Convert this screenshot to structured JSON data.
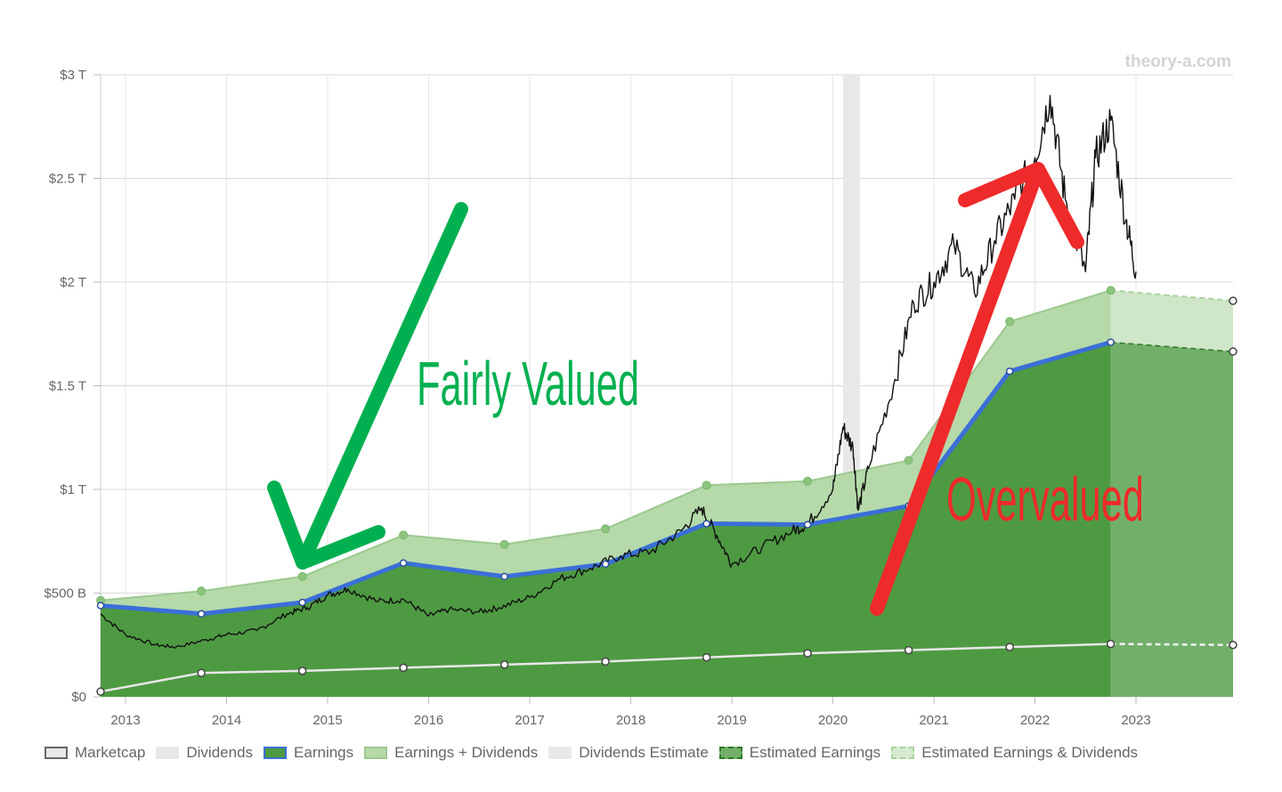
{
  "watermark": "theory-a.com",
  "annotations": {
    "fair": "Fairly Valued",
    "over": "Overvalued",
    "fair_color": "#00b050",
    "over_color": "#ee2a2a"
  },
  "legend": [
    {
      "key": "marketcap",
      "label": "Marketcap",
      "fill": "#e8e8e8",
      "border": "#666666",
      "dashed": false
    },
    {
      "key": "dividends",
      "label": "Dividends",
      "fill": "#e8e8e8",
      "border": "#e8e8e8",
      "dashed": false
    },
    {
      "key": "earnings",
      "label": "Earnings",
      "fill": "#4e9a42",
      "border": "#3b6fd8",
      "dashed": false
    },
    {
      "key": "earnings-dividends",
      "label": "Earnings + Dividends",
      "fill": "#b5d9a9",
      "border": "#9cc98f",
      "dashed": false
    },
    {
      "key": "dividends-estimate",
      "label": "Dividends Estimate",
      "fill": "#e8e8e8",
      "border": "#e8e8e8",
      "dashed": false
    },
    {
      "key": "estimated-earnings",
      "label": "Estimated Earnings",
      "fill": "#72b06a",
      "border": "#2f7a2a",
      "dashed": true
    },
    {
      "key": "estimated-earnings-dividends",
      "label": "Estimated Earnings & Dividends",
      "fill": "#d6ead0",
      "border": "#a9d39e",
      "dashed": true
    }
  ],
  "chart_data": {
    "type": "area",
    "x_ticks": [
      "2013",
      "2014",
      "2015",
      "2016",
      "2017",
      "2018",
      "2019",
      "2020",
      "2021",
      "2022",
      "2023"
    ],
    "y_ticks": [
      {
        "value": 0,
        "label": "$0"
      },
      {
        "value": 500,
        "label": "$500 B"
      },
      {
        "value": 1000,
        "label": "$1 T"
      },
      {
        "value": 1500,
        "label": "$1.5 T"
      },
      {
        "value": 2000,
        "label": "$2 T"
      },
      {
        "value": 2500,
        "label": "$2.5 T"
      },
      {
        "value": 3000,
        "label": "$3 T"
      }
    ],
    "ylim": [
      0,
      3000
    ],
    "xlim": [
      2012.75,
      2024.0
    ],
    "y_unit": "billions USD",
    "grid": true,
    "legend_position": "bottom",
    "series": [
      {
        "name": "Earnings + Dividends",
        "color": "#a8d49b",
        "x": [
          2012.75,
          2013.75,
          2014.75,
          2015.75,
          2016.75,
          2017.75,
          2018.75,
          2019.75,
          2020.75,
          2021.75,
          2022.75
        ],
        "values": [
          465,
          510,
          580,
          780,
          735,
          810,
          1020,
          1040,
          1140,
          1810,
          1960
        ]
      },
      {
        "name": "Earnings",
        "color": "#3b6fd8",
        "x": [
          2012.75,
          2013.75,
          2014.75,
          2015.75,
          2016.75,
          2017.75,
          2018.75,
          2019.75,
          2020.75,
          2021.75,
          2022.75
        ],
        "values": [
          440,
          400,
          455,
          645,
          580,
          640,
          835,
          830,
          920,
          1570,
          1710
        ]
      },
      {
        "name": "Dividends",
        "color": "#e8e8e8",
        "x": [
          2012.75,
          2013.75,
          2014.75,
          2015.75,
          2016.75,
          2017.75,
          2018.75,
          2019.75,
          2020.75,
          2021.75,
          2022.75
        ],
        "values": [
          25,
          115,
          125,
          140,
          155,
          170,
          190,
          210,
          225,
          240,
          255
        ]
      },
      {
        "name": "Estimated Earnings & Dividends",
        "color": "#d6ead0",
        "x": [
          2022.75,
          2024.0
        ],
        "values": [
          1960,
          1910
        ]
      },
      {
        "name": "Estimated Earnings",
        "color": "#72b06a",
        "x": [
          2022.75,
          2024.0
        ],
        "values": [
          1710,
          1665
        ]
      },
      {
        "name": "Dividends Estimate",
        "color": "#e8e8e8",
        "x": [
          2022.75,
          2024.0
        ],
        "values": [
          255,
          250
        ]
      },
      {
        "name": "Marketcap",
        "color": "#111111",
        "x": [
          2012.75,
          2013.0,
          2013.3,
          2013.5,
          2013.8,
          2014.0,
          2014.3,
          2014.6,
          2014.8,
          2015.0,
          2015.2,
          2015.5,
          2015.75,
          2016.0,
          2016.2,
          2016.5,
          2016.7,
          2017.0,
          2017.3,
          2017.6,
          2017.9,
          2018.2,
          2018.5,
          2018.7,
          2018.85,
          2019.0,
          2019.3,
          2019.6,
          2019.75,
          2020.0,
          2020.1,
          2020.2,
          2020.25,
          2020.35,
          2020.6,
          2020.8,
          2021.0,
          2021.2,
          2021.4,
          2021.6,
          2021.8,
          2022.0,
          2022.15,
          2022.3,
          2022.5,
          2022.6,
          2022.75,
          2022.9,
          2023.0
        ],
        "values": [
          400,
          300,
          250,
          240,
          275,
          300,
          320,
          400,
          430,
          490,
          520,
          460,
          470,
          390,
          420,
          410,
          430,
          480,
          570,
          620,
          680,
          700,
          800,
          910,
          780,
          640,
          720,
          800,
          830,
          1000,
          1300,
          1200,
          900,
          1100,
          1500,
          1900,
          2000,
          2180,
          1950,
          2200,
          2400,
          2600,
          2900,
          2400,
          2050,
          2600,
          2780,
          2300,
          2050
        ]
      }
    ]
  }
}
